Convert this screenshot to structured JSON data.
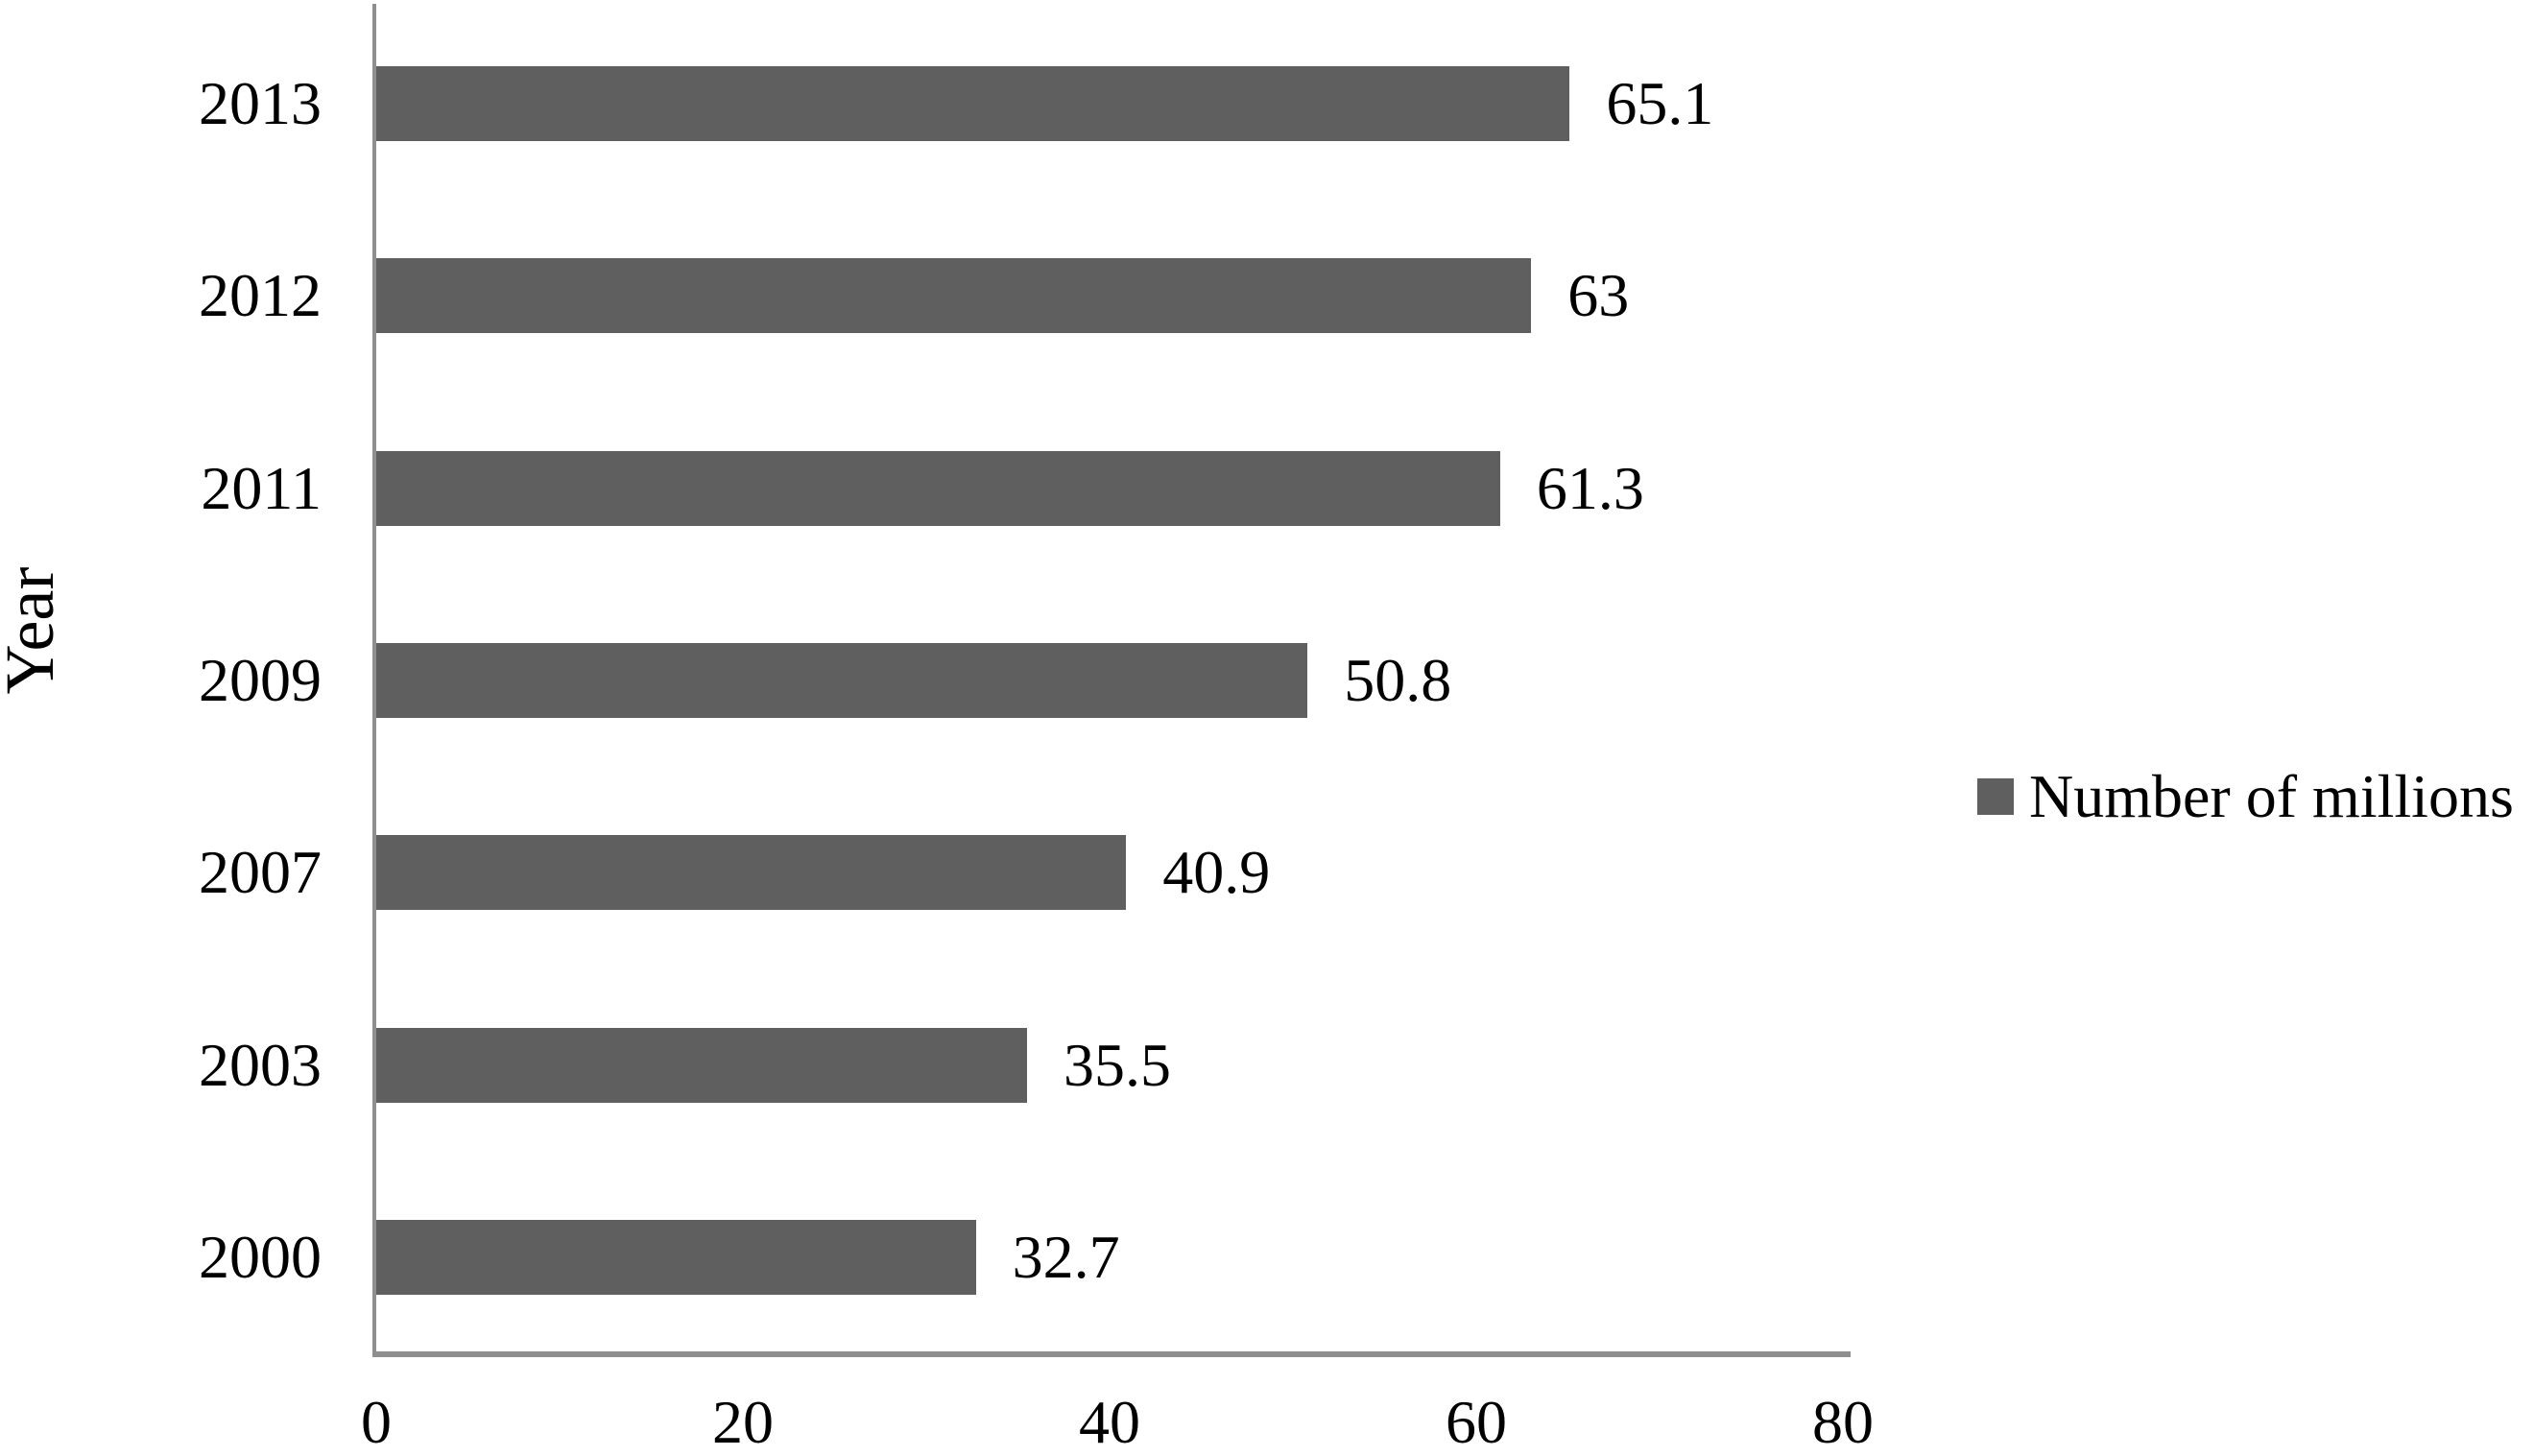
{
  "chart_data": {
    "type": "bar",
    "orientation": "horizontal",
    "title": "",
    "xlabel": "",
    "ylabel": "Year",
    "categories": [
      "2013",
      "2012",
      "2011",
      "2009",
      "2007",
      "2003",
      "2000"
    ],
    "series": [
      {
        "name": "Number of millions",
        "values": [
          65.1,
          63,
          61.3,
          50.8,
          40.9,
          35.5,
          32.7
        ]
      }
    ],
    "value_labels": [
      "65.1",
      "63",
      "61.3",
      "50.8",
      "40.9",
      "35.5",
      "32.7"
    ],
    "xticks": [
      0,
      20,
      40,
      60,
      80
    ],
    "xtick_labels": [
      "0",
      "20",
      "40",
      "60",
      "80"
    ],
    "xlim": [
      0,
      80
    ],
    "grid": false,
    "data_labels": true,
    "legend": {
      "position": "right",
      "entries": [
        "Number of millions"
      ]
    },
    "colors": {
      "bar": "#5f5f5f",
      "axis": "#8f8f8f",
      "text": "#000000",
      "background": "#ffffff"
    }
  }
}
